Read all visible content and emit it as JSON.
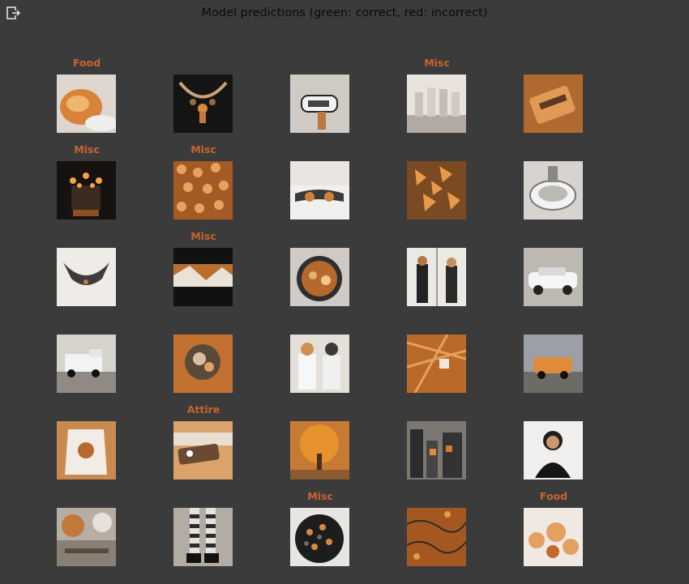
{
  "header": {
    "title": "Model predictions (green: correct, red: incorrect)",
    "exit_icon": "exit-icon"
  },
  "colors": {
    "background": "#3b3b3b",
    "incorrect": "#c9632e",
    "correct": "#4caf50"
  },
  "items": [
    {
      "label": "Food",
      "status": "incorrect",
      "image": "bread on plate"
    },
    {
      "label": "",
      "status": "correct",
      "image": "necklace"
    },
    {
      "label": "",
      "status": "correct",
      "image": "sneaker"
    },
    {
      "label": "Misc",
      "status": "incorrect",
      "image": "bottles"
    },
    {
      "label": "",
      "status": "correct",
      "image": "wrapped item"
    },
    {
      "label": "Misc",
      "status": "incorrect",
      "image": "candelabra"
    },
    {
      "label": "Misc",
      "status": "incorrect",
      "image": "pattern"
    },
    {
      "label": "",
      "status": "correct",
      "image": "hands on fabric"
    },
    {
      "label": "",
      "status": "correct",
      "image": "orange flowers"
    },
    {
      "label": "",
      "status": "correct",
      "image": "glass bowl"
    },
    {
      "label": "",
      "status": "correct",
      "image": "collar"
    },
    {
      "label": "Misc",
      "status": "incorrect",
      "image": "banner"
    },
    {
      "label": "",
      "status": "correct",
      "image": "plate of food"
    },
    {
      "label": "",
      "status": "correct",
      "image": "two people"
    },
    {
      "label": "",
      "status": "correct",
      "image": "white car"
    },
    {
      "label": "",
      "status": "correct",
      "image": "truck"
    },
    {
      "label": "",
      "status": "correct",
      "image": "toy"
    },
    {
      "label": "",
      "status": "correct",
      "image": "couple"
    },
    {
      "label": "",
      "status": "correct",
      "image": "leaves"
    },
    {
      "label": "",
      "status": "correct",
      "image": "orange car"
    },
    {
      "label": "",
      "status": "correct",
      "image": "dress"
    },
    {
      "label": "Attire",
      "status": "incorrect",
      "image": "bottle"
    },
    {
      "label": "",
      "status": "correct",
      "image": "autumn tree"
    },
    {
      "label": "",
      "status": "correct",
      "image": "city street"
    },
    {
      "label": "",
      "status": "correct",
      "image": "woman portrait"
    },
    {
      "label": "",
      "status": "correct",
      "image": "canal"
    },
    {
      "label": "",
      "status": "correct",
      "image": "striped socks"
    },
    {
      "label": "Misc",
      "status": "incorrect",
      "image": "berries"
    },
    {
      "label": "",
      "status": "correct",
      "image": "texture"
    },
    {
      "label": "Food",
      "status": "incorrect",
      "image": "dish"
    }
  ]
}
